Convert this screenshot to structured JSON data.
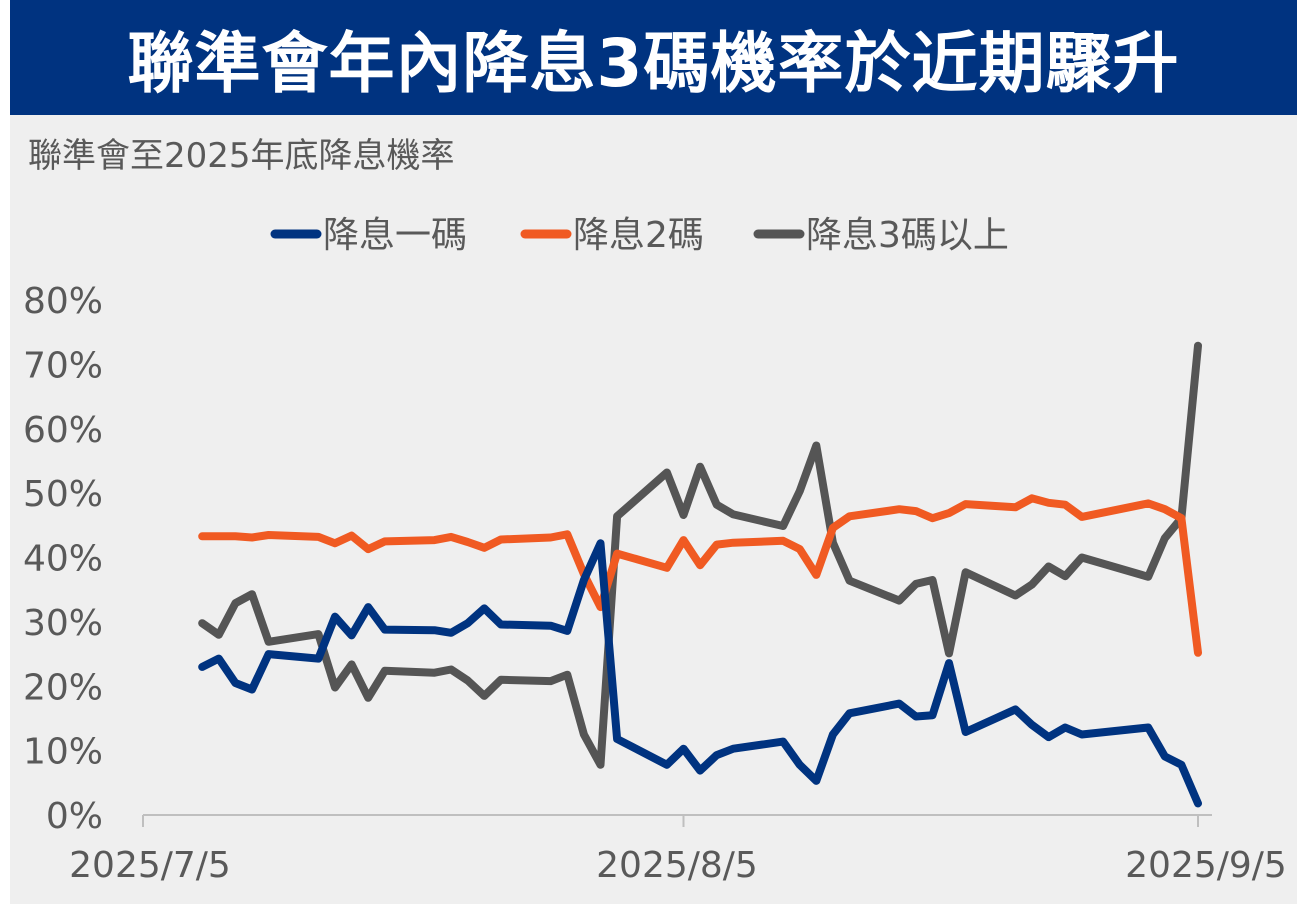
{
  "title": "聯準會年內降息3碼機率於近期驟升",
  "subtitle": "聯準會至2025年底降息機率",
  "chart_data": {
    "type": "line",
    "title": "聯準會年內降息3碼機率於近期驟升",
    "subtitle": "聯準會至2025年底降息機率",
    "xlabel": "",
    "ylabel": "",
    "x_ticks": [
      "2025/7/5",
      "2025/8/5",
      "2025/9/5"
    ],
    "y_ticks": [
      "0%",
      "10%",
      "20%",
      "30%",
      "40%",
      "50%",
      "60%",
      "70%",
      "80%"
    ],
    "ylim": [
      0,
      80
    ],
    "xlim": [
      "2025/7/5",
      "2025/9/5"
    ],
    "grid": false,
    "legend": "top-center",
    "series": [
      {
        "name": "降息一碼",
        "color": "#003380",
        "points": [
          [
            "2025-07-07",
            23
          ],
          [
            "2025-07-08",
            24.3
          ],
          [
            "2025-07-09",
            20.5
          ],
          [
            "2025-07-10",
            19.5
          ],
          [
            "2025-07-11",
            25
          ],
          [
            "2025-07-14",
            24.3
          ],
          [
            "2025-07-15",
            30.8
          ],
          [
            "2025-07-16",
            27.9
          ],
          [
            "2025-07-17",
            32.3
          ],
          [
            "2025-07-18",
            28.8
          ],
          [
            "2025-07-21",
            28.7
          ],
          [
            "2025-07-22",
            28.3
          ],
          [
            "2025-07-23",
            29.8
          ],
          [
            "2025-07-24",
            32.1
          ],
          [
            "2025-07-25",
            29.6
          ],
          [
            "2025-07-28",
            29.4
          ],
          [
            "2025-07-29",
            28.6
          ],
          [
            "2025-07-30",
            36.5
          ],
          [
            "2025-07-31",
            42.2
          ],
          [
            "2025-08-01",
            11.8
          ],
          [
            "2025-08-04",
            7.8
          ],
          [
            "2025-08-05",
            10.3
          ],
          [
            "2025-08-06",
            6.9
          ],
          [
            "2025-08-07",
            9.3
          ],
          [
            "2025-08-08",
            10.3
          ],
          [
            "2025-08-11",
            11.4
          ],
          [
            "2025-08-12",
            7.8
          ],
          [
            "2025-08-13",
            5.3
          ],
          [
            "2025-08-14",
            12.5
          ],
          [
            "2025-08-15",
            15.8
          ],
          [
            "2025-08-18",
            17.3
          ],
          [
            "2025-08-19",
            15.3
          ],
          [
            "2025-08-20",
            15.5
          ],
          [
            "2025-08-21",
            23.6
          ],
          [
            "2025-08-22",
            12.9
          ],
          [
            "2025-08-25",
            16.4
          ],
          [
            "2025-08-26",
            14
          ],
          [
            "2025-08-27",
            12.1
          ],
          [
            "2025-08-28",
            13.6
          ],
          [
            "2025-08-29",
            12.5
          ],
          [
            "2025-09-02",
            13.6
          ],
          [
            "2025-09-03",
            9.1
          ],
          [
            "2025-09-04",
            7.8
          ],
          [
            "2025-09-05",
            1.8
          ]
        ]
      },
      {
        "name": "降息2碼",
        "color": "#f05a22",
        "points": [
          [
            "2025-07-07",
            43.3
          ],
          [
            "2025-07-08",
            43.3
          ],
          [
            "2025-07-09",
            43.3
          ],
          [
            "2025-07-10",
            43.1
          ],
          [
            "2025-07-11",
            43.5
          ],
          [
            "2025-07-14",
            43.2
          ],
          [
            "2025-07-15",
            42.2
          ],
          [
            "2025-07-16",
            43.4
          ],
          [
            "2025-07-17",
            41.3
          ],
          [
            "2025-07-18",
            42.5
          ],
          [
            "2025-07-21",
            42.7
          ],
          [
            "2025-07-22",
            43.2
          ],
          [
            "2025-07-23",
            42.4
          ],
          [
            "2025-07-24",
            41.5
          ],
          [
            "2025-07-25",
            42.8
          ],
          [
            "2025-07-28",
            43.1
          ],
          [
            "2025-07-29",
            43.6
          ],
          [
            "2025-07-30",
            37.4
          ],
          [
            "2025-07-31",
            32.3
          ],
          [
            "2025-08-01",
            40.6
          ],
          [
            "2025-08-04",
            38.4
          ],
          [
            "2025-08-05",
            42.7
          ],
          [
            "2025-08-06",
            38.8
          ],
          [
            "2025-08-07",
            42
          ],
          [
            "2025-08-08",
            42.3
          ],
          [
            "2025-08-11",
            42.6
          ],
          [
            "2025-08-12",
            41.3
          ],
          [
            "2025-08-13",
            37.3
          ],
          [
            "2025-08-14",
            44.6
          ],
          [
            "2025-08-15",
            46.4
          ],
          [
            "2025-08-18",
            47.5
          ],
          [
            "2025-08-19",
            47.2
          ],
          [
            "2025-08-20",
            46.1
          ],
          [
            "2025-08-21",
            46.9
          ],
          [
            "2025-08-22",
            48.3
          ],
          [
            "2025-08-25",
            47.8
          ],
          [
            "2025-08-26",
            49.2
          ],
          [
            "2025-08-27",
            48.5
          ],
          [
            "2025-08-28",
            48.2
          ],
          [
            "2025-08-29",
            46.3
          ],
          [
            "2025-09-02",
            48.4
          ],
          [
            "2025-09-03",
            47.5
          ],
          [
            "2025-09-04",
            46.1
          ],
          [
            "2025-09-05",
            25.2
          ]
        ]
      },
      {
        "name": "降息3碼以上",
        "color": "#555555",
        "points": [
          [
            "2025-07-07",
            29.8
          ],
          [
            "2025-07-08",
            28
          ],
          [
            "2025-07-09",
            32.9
          ],
          [
            "2025-07-10",
            34.3
          ],
          [
            "2025-07-11",
            26.9
          ],
          [
            "2025-07-14",
            28.1
          ],
          [
            "2025-07-15",
            19.8
          ],
          [
            "2025-07-16",
            23.4
          ],
          [
            "2025-07-17",
            18.2
          ],
          [
            "2025-07-18",
            22.4
          ],
          [
            "2025-07-21",
            22.1
          ],
          [
            "2025-07-22",
            22.6
          ],
          [
            "2025-07-23",
            20.9
          ],
          [
            "2025-07-24",
            18.5
          ],
          [
            "2025-07-25",
            21
          ],
          [
            "2025-07-28",
            20.8
          ],
          [
            "2025-07-29",
            21.8
          ],
          [
            "2025-07-30",
            12.5
          ],
          [
            "2025-07-31",
            7.8
          ],
          [
            "2025-08-01",
            46.4
          ],
          [
            "2025-08-04",
            53.2
          ],
          [
            "2025-08-05",
            46.6
          ],
          [
            "2025-08-06",
            54.1
          ],
          [
            "2025-08-07",
            48.2
          ],
          [
            "2025-08-08",
            46.7
          ],
          [
            "2025-08-11",
            44.9
          ],
          [
            "2025-08-12",
            50.3
          ],
          [
            "2025-08-13",
            57.4
          ],
          [
            "2025-08-14",
            42.3
          ],
          [
            "2025-08-15",
            36.4
          ],
          [
            "2025-08-18",
            33.3
          ],
          [
            "2025-08-19",
            35.9
          ],
          [
            "2025-08-20",
            36.5
          ],
          [
            "2025-08-21",
            25.1
          ],
          [
            "2025-08-22",
            37.7
          ],
          [
            "2025-08-25",
            34.1
          ],
          [
            "2025-08-26",
            35.8
          ],
          [
            "2025-08-27",
            38.6
          ],
          [
            "2025-08-28",
            37.1
          ],
          [
            "2025-08-29",
            40
          ],
          [
            "2025-09-02",
            37
          ],
          [
            "2025-09-03",
            43
          ],
          [
            "2025-09-04",
            46.1
          ],
          [
            "2025-09-05",
            72.9
          ]
        ]
      }
    ]
  }
}
